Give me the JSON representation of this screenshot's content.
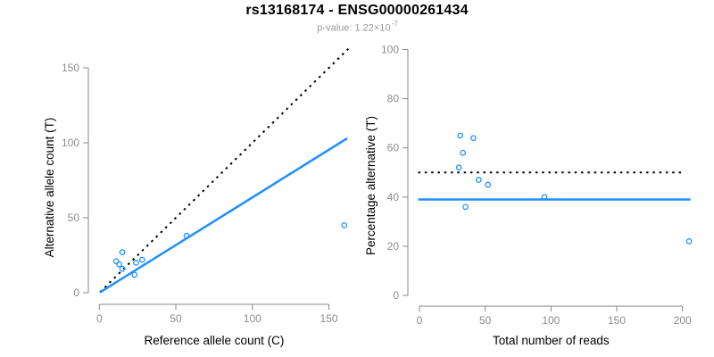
{
  "header": {
    "title": "rs13168174 - ENSG00000261434",
    "subtitle_prefix": "p-value: 1.22×10",
    "subtitle_exponent": "-7"
  },
  "colors": {
    "accent_blue": "#1E90FF",
    "line_black": "#000000",
    "axis_gray": "#878787",
    "tick_label_gray": "#8c8c8c",
    "subtitle_gray": "#999999",
    "title_black": "#000000"
  },
  "chart_data": [
    {
      "type": "scatter",
      "name": "allele-counts-scatter",
      "xlabel": "Reference allele count (C)",
      "ylabel": "Alternative allele count (T)",
      "xlim": [
        0,
        165
      ],
      "ylim": [
        0,
        165
      ],
      "xticks": [
        0,
        50,
        100,
        150
      ],
      "yticks": [
        0,
        50,
        100,
        150
      ],
      "grid": false,
      "marker": "open-circle",
      "points": [
        [
          11,
          21
        ],
        [
          13,
          19
        ],
        [
          15,
          16
        ],
        [
          15,
          27
        ],
        [
          23,
          12
        ],
        [
          24,
          20
        ],
        [
          28,
          22
        ],
        [
          57,
          38
        ],
        [
          160,
          45
        ]
      ],
      "lines": [
        {
          "name": "identity-line",
          "style": "dotted",
          "color": "#000000",
          "x1": 0.5,
          "y1": 0.5,
          "x2": 163,
          "y2": 163
        },
        {
          "name": "regression-line",
          "style": "solid",
          "color": "#1E90FF",
          "x1": 0.3,
          "y1": 0.2,
          "x2": 162,
          "y2": 103
        }
      ]
    },
    {
      "type": "scatter",
      "name": "percentage-vs-reads-scatter",
      "xlabel": "Total number of reads",
      "ylabel": "Percentage alternative (T)",
      "xlim": [
        0,
        207
      ],
      "ylim": [
        0,
        100
      ],
      "xticks": [
        0,
        50,
        100,
        150,
        200
      ],
      "yticks": [
        0,
        20,
        40,
        60,
        80,
        100
      ],
      "grid": false,
      "marker": "open-circle",
      "points": [
        [
          31,
          65
        ],
        [
          41,
          64
        ],
        [
          33,
          58
        ],
        [
          30,
          52
        ],
        [
          35,
          36
        ],
        [
          45,
          47
        ],
        [
          52,
          45
        ],
        [
          95,
          40
        ],
        [
          205,
          22
        ]
      ],
      "lines": [
        {
          "name": "fifty-percent-line",
          "style": "dotted",
          "color": "#000000",
          "x1": -1,
          "y1": 50,
          "x2": 202,
          "y2": 50
        },
        {
          "name": "mean-percentage-line",
          "style": "solid",
          "color": "#1E90FF",
          "x1": -1,
          "y1": 39,
          "x2": 206,
          "y2": 39
        }
      ]
    }
  ]
}
